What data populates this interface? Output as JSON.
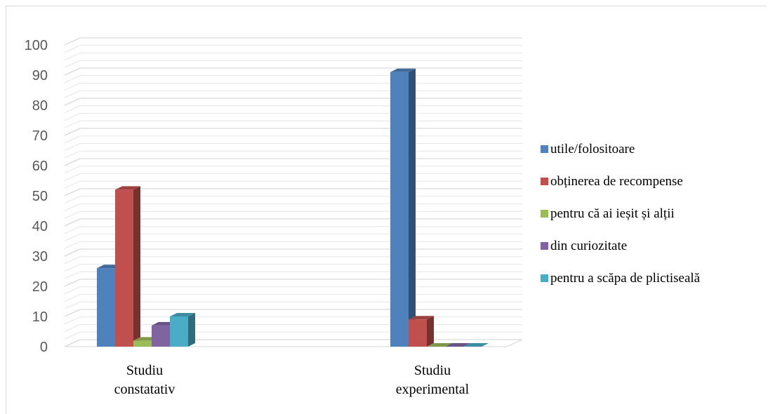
{
  "chart_data": {
    "type": "bar",
    "title": "",
    "xlabel": "",
    "ylabel": "",
    "ylim": [
      0,
      100
    ],
    "yticks": [
      0,
      10,
      20,
      30,
      40,
      50,
      60,
      70,
      80,
      90,
      100
    ],
    "grid": true,
    "legend_position": "right",
    "categories": [
      [
        "Studiu",
        "constatativ"
      ],
      [
        "Studiu",
        "experimental"
      ]
    ],
    "series": [
      {
        "name": "utile/folositoare",
        "color": "#4f81bd",
        "values": [
          26,
          91
        ]
      },
      {
        "name": "obținerea de recompense",
        "color": "#c0504d",
        "values": [
          52,
          9
        ]
      },
      {
        "name": "pentru că ai ieșit și alții",
        "color": "#9bbb59",
        "values": [
          2,
          0
        ]
      },
      {
        "name": "din curiozitate",
        "color": "#8064a2",
        "values": [
          7,
          0
        ]
      },
      {
        "name": "pentru a scăpa de plictiseală",
        "color": "#4bacc6",
        "values": [
          10,
          0
        ]
      }
    ]
  }
}
